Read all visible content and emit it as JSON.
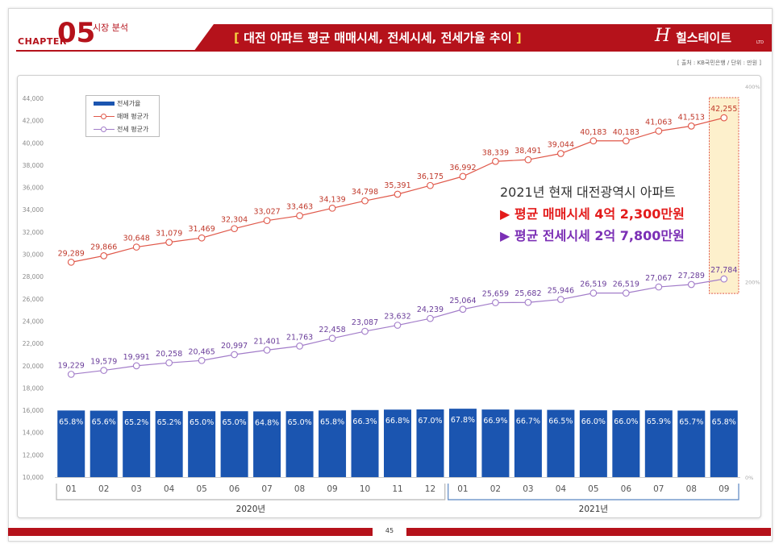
{
  "header": {
    "chapter_word": "CHAPTER",
    "chapter_number": "05",
    "chapter_subtitle": "시장 분석",
    "bracket_open": "[",
    "title": "대전 아파트 평균 매매시세, 전세시세, 전세가율 추이",
    "bracket_close": "]",
    "logo_mark": "H",
    "logo_text": "힐스테이트",
    "logo_ltd": "LTD"
  },
  "source_note": "[ 출처 : KB국민은행 / 단위 : 만원 ]",
  "annotation": {
    "line1": "2021년 현재 대전광역시 아파트",
    "line2": "▶ 평균 매매시세 4억 2,300만원",
    "line3": "▶ 평균 전세시세 2억 7,800만원"
  },
  "footer": {
    "page_number": "45"
  },
  "colors": {
    "brand_red": "#b5121b",
    "sale_line": "#e0584a",
    "jeonse_line": "#a27cc9",
    "bar": "#1b55b0",
    "highlight_fill": "#fdf0cc",
    "highlight_border": "#e0584a"
  },
  "chart_data": {
    "type": "bar+line",
    "categories": [
      "01",
      "02",
      "03",
      "04",
      "05",
      "06",
      "07",
      "08",
      "09",
      "10",
      "11",
      "12",
      "01",
      "02",
      "03",
      "04",
      "05",
      "06",
      "07",
      "08",
      "09"
    ],
    "year_groups": [
      {
        "label": "2020년",
        "months": 12
      },
      {
        "label": "2021년",
        "months": 9
      }
    ],
    "series": [
      {
        "name": "전세가율",
        "kind": "bar",
        "axis": "right",
        "values": [
          65.8,
          65.6,
          65.2,
          65.2,
          65.0,
          65.0,
          64.8,
          65.0,
          65.8,
          66.3,
          66.8,
          67.0,
          67.8,
          66.9,
          66.7,
          66.5,
          66.0,
          66.0,
          65.9,
          65.7,
          65.8
        ],
        "labels": [
          "65.8%",
          "65.6%",
          "65.2%",
          "65.2%",
          "65.0%",
          "65.0%",
          "64.8%",
          "65.0%",
          "65.8%",
          "66.3%",
          "66.8%",
          "67.0%",
          "67.8%",
          "66.9%",
          "66.7%",
          "66.5%",
          "66.0%",
          "66.0%",
          "65.9%",
          "65.7%",
          "65.8%"
        ]
      },
      {
        "name": "매매 평균가",
        "kind": "line",
        "axis": "left",
        "values": [
          29289,
          29866,
          30648,
          31079,
          31469,
          32304,
          33027,
          33463,
          34139,
          34798,
          35391,
          36175,
          36992,
          38339,
          38491,
          39044,
          40183,
          40183,
          41063,
          41513,
          42255
        ],
        "labels": [
          "29,289",
          "29,866",
          "30,648",
          "31,079",
          "31,469",
          "32,304",
          "33,027",
          "33,463",
          "34,139",
          "34,798",
          "35,391",
          "36,175",
          "36,992",
          "38,339",
          "38,491",
          "39,044",
          "40,183",
          "40,183",
          "41,063",
          "41,513",
          "42,255"
        ]
      },
      {
        "name": "전세 평균가",
        "kind": "line",
        "axis": "left",
        "values": [
          19229,
          19579,
          19991,
          20258,
          20465,
          20997,
          21401,
          21763,
          22458,
          23087,
          23632,
          24239,
          25064,
          25659,
          25682,
          25946,
          26519,
          26519,
          27067,
          27289,
          27784
        ],
        "labels": [
          "19,229",
          "19,579",
          "19,991",
          "20,258",
          "20,465",
          "20,997",
          "21,401",
          "21,763",
          "22,458",
          "23,087",
          "23,632",
          "24,239",
          "25,064",
          "25,659",
          "25,682",
          "25,946",
          "26,519",
          "26,519",
          "27,067",
          "27,289",
          "27,784"
        ]
      }
    ],
    "y_left": {
      "min": 10000,
      "max": 44000,
      "step": 2000,
      "tick_labels": [
        "10,000",
        "12,000",
        "14,000",
        "16,000",
        "18,000",
        "20,000",
        "22,000",
        "24,000",
        "26,000",
        "28,000",
        "30,000",
        "32,000",
        "34,000",
        "36,000",
        "38,000",
        "40,000",
        "42,000",
        "44,000"
      ]
    },
    "y_right": {
      "ticks": [
        0,
        200,
        400
      ],
      "tick_labels": [
        "0%",
        "200%",
        "400%"
      ]
    },
    "highlight_category_index": 20,
    "legend_placement": "top-left"
  }
}
